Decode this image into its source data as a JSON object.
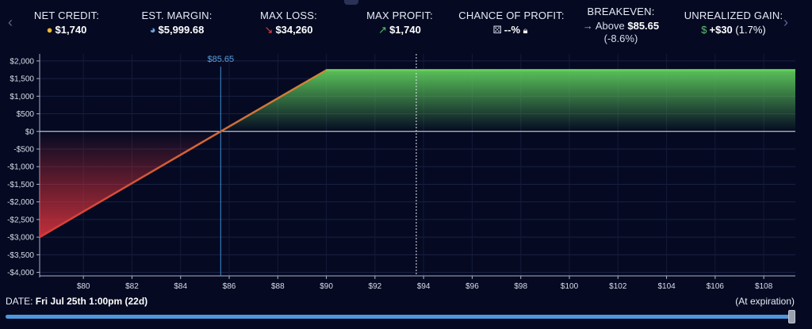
{
  "nav": {
    "prev": "‹",
    "next": "›"
  },
  "stats": {
    "net_credit": {
      "label": "NET CREDIT:",
      "value": "$1,740",
      "icon": "coins-icon"
    },
    "est_margin": {
      "label": "EST. MARGIN:",
      "value": "$5,999.68",
      "icon": "pie-icon"
    },
    "max_loss": {
      "label": "MAX LOSS:",
      "value": "$34,260",
      "icon": "down-arrow-icon"
    },
    "max_profit": {
      "label": "MAX PROFIT:",
      "value": "$1,740",
      "icon": "up-arrow-icon"
    },
    "chance_of_profit": {
      "label": "CHANCE OF PROFIT:",
      "value": "--%",
      "icon": "dice-icon"
    },
    "breakeven": {
      "label": "BREAKEVEN:",
      "prefix": "Above",
      "value": "$85.65",
      "sub": "(-8.6%)"
    },
    "unrealized_gain": {
      "label": "UNREALIZED GAIN:",
      "value": "+$30",
      "sub": "(1.7%)",
      "icon": "money-bag-icon"
    }
  },
  "footer": {
    "date_label": "DATE:",
    "date_value": "Fri Jul 25th 1:00pm (22d)",
    "expiration": "(At expiration)",
    "slider_progress": 1.0
  },
  "colors": {
    "profit": "#5dc95b",
    "loss": "#d8333d",
    "breakeven_line": "#3f8fd6",
    "background": "#050a22"
  },
  "chart_data": {
    "type": "area",
    "title": "",
    "xlabel": "",
    "ylabel": "",
    "xlim": [
      78.2,
      109.3
    ],
    "ylim": [
      -4100,
      2200
    ],
    "x_ticks": [
      80,
      82,
      84,
      86,
      88,
      90,
      92,
      94,
      96,
      98,
      100,
      102,
      104,
      106,
      108
    ],
    "x_tick_labels": [
      "$80",
      "$82",
      "$84",
      "$86",
      "$88",
      "$90",
      "$92",
      "$94",
      "$96",
      "$98",
      "$100",
      "$102",
      "$104",
      "$106",
      "$108"
    ],
    "y_ticks": [
      2000,
      1500,
      1000,
      500,
      0,
      -500,
      -1000,
      -1500,
      -2000,
      -2500,
      -3000,
      -3500,
      -4000
    ],
    "y_tick_labels": [
      "$2,000",
      "$1,500",
      "$1,000",
      "$500",
      "$0",
      "-$500",
      "-$1,000",
      "-$1,500",
      "-$2,000",
      "-$2,500",
      "-$3,000",
      "-$3,500",
      "-$4,000"
    ],
    "series": [
      {
        "x": [
          78.2,
          85.65,
          90.0,
          109.3
        ],
        "y": [
          -3000,
          0,
          1740,
          1740
        ]
      }
    ],
    "breakeven": {
      "x": 85.65,
      "label": "$85.65"
    },
    "current_price_x": 93.7,
    "grid": true
  }
}
